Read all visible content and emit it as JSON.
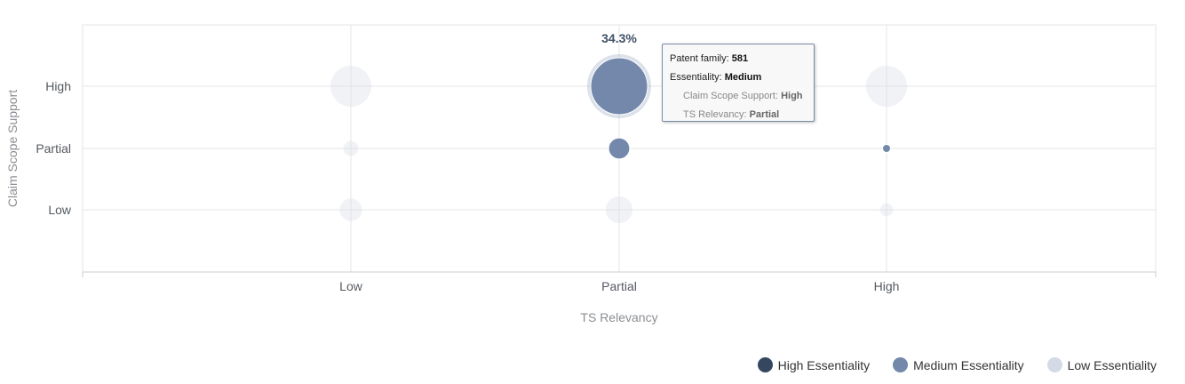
{
  "chart_data": {
    "type": "scatter",
    "title": "",
    "xlabel": "TS Relevancy",
    "ylabel": "Claim Scope Support",
    "x_categories": [
      "Low",
      "Partial",
      "High"
    ],
    "y_categories": [
      "Low",
      "Partial",
      "High"
    ],
    "grid": true,
    "legend_position": "bottom-right",
    "series": [
      {
        "name": "High Essentiality",
        "color": "#34475f",
        "points": []
      },
      {
        "name": "Medium Essentiality",
        "color": "#7388aa",
        "points": [
          {
            "x": "Partial",
            "y": "High",
            "size": 581,
            "label": "34.3%"
          },
          {
            "x": "Partial",
            "y": "Partial",
            "size": 80
          },
          {
            "x": "High",
            "y": "Partial",
            "size": 10
          }
        ]
      },
      {
        "name": "Low Essentiality",
        "color": "#d3dae5",
        "points": [
          {
            "x": "Low",
            "y": "High",
            "size": 300
          },
          {
            "x": "High",
            "y": "High",
            "size": 300
          },
          {
            "x": "Low",
            "y": "Partial",
            "size": 40
          },
          {
            "x": "Low",
            "y": "Low",
            "size": 90
          },
          {
            "x": "Partial",
            "y": "Low",
            "size": 130
          },
          {
            "x": "High",
            "y": "Low",
            "size": 30
          }
        ]
      }
    ]
  },
  "tooltip": {
    "family_label": "Patent family: ",
    "family_value": "581",
    "essentiality_label": "Essentiality: ",
    "essentiality_value": "Medium",
    "claim_label": "Claim Scope Support: ",
    "claim_value": "High",
    "ts_label": "TS Relevancy: ",
    "ts_value": "Partial"
  }
}
